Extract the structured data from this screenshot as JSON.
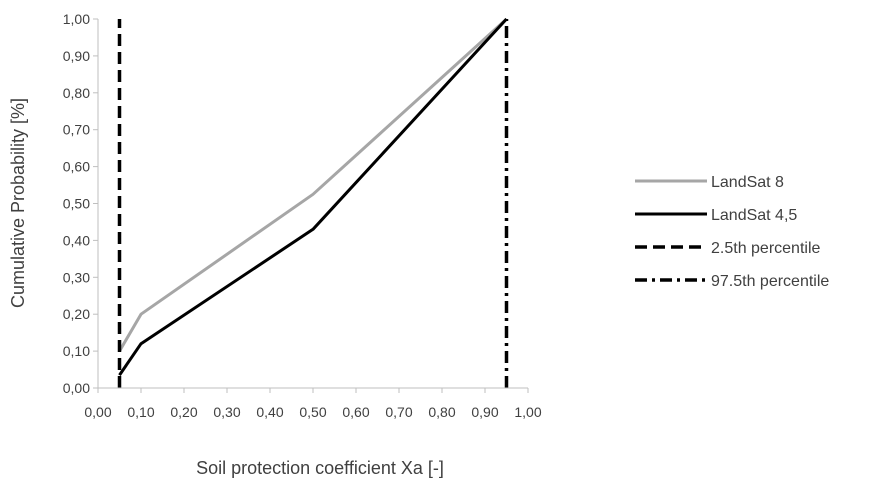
{
  "chart_data": {
    "type": "line",
    "xlabel": "Soil protection coefficient Xa [-]",
    "ylabel": "Cumulative Probability [%]",
    "xlim": [
      0,
      1
    ],
    "ylim": [
      0,
      1
    ],
    "x_ticks": [
      "0,00",
      "0,10",
      "0,20",
      "0,30",
      "0,40",
      "0,50",
      "0,60",
      "0,70",
      "0,80",
      "0,90",
      "1,00"
    ],
    "y_ticks": [
      "0,00",
      "0,10",
      "0,20",
      "0,30",
      "0,40",
      "0,50",
      "0,60",
      "0,70",
      "0,80",
      "0,90",
      "1,00"
    ],
    "grid": false,
    "legend_position": "right",
    "series": [
      {
        "name": "LandSat 8",
        "color": "#a6a6a6",
        "style": "solid",
        "x": [
          0.05,
          0.1,
          0.5,
          0.95
        ],
        "y": [
          0.1,
          0.2,
          0.525,
          1.0
        ]
      },
      {
        "name": "LandSat 4,5",
        "color": "#000000",
        "style": "solid",
        "x": [
          0.05,
          0.1,
          0.5,
          0.95
        ],
        "y": [
          0.035,
          0.12,
          0.43,
          1.0
        ]
      },
      {
        "name": "2.5th percentile",
        "color": "#000000",
        "style": "dashed",
        "x": [
          0.05,
          0.05
        ],
        "y": [
          0.0,
          1.0
        ]
      },
      {
        "name": "97.5th percentile",
        "color": "#000000",
        "style": "dashdot",
        "x": [
          0.95,
          0.95
        ],
        "y": [
          0.0,
          1.0
        ]
      }
    ]
  }
}
